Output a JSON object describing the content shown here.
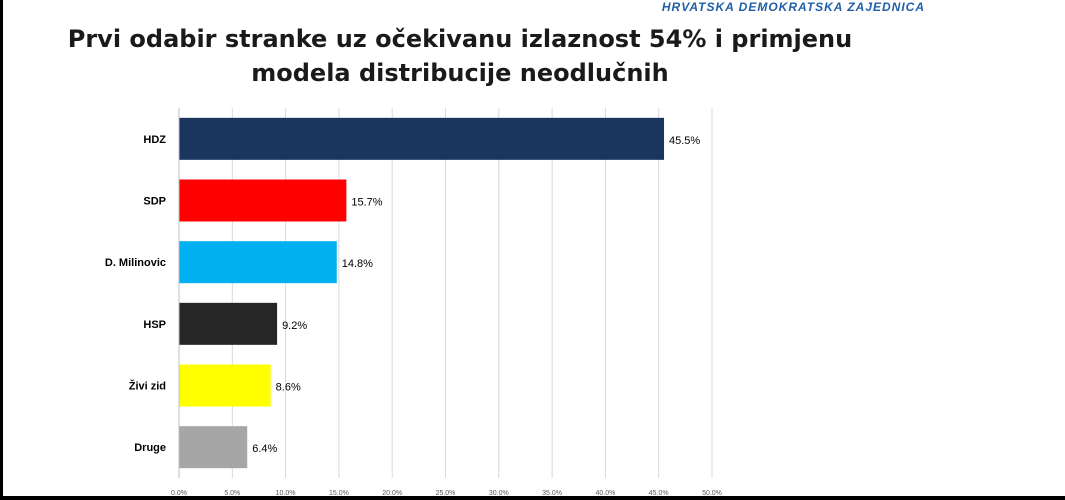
{
  "header": {
    "org": "HRVATSKA DEMOKRATSKA ZAJEDNICA"
  },
  "chart_data": {
    "type": "bar",
    "orientation": "horizontal",
    "title_lines": [
      "Prvi odabir stranke uz očekivanu izlaznost 54% i primjenu",
      "modela distribucije neodlučnih"
    ],
    "xlabel": "",
    "ylabel": "",
    "xlim": [
      0,
      50
    ],
    "ticks": [
      0,
      5,
      10,
      15,
      20,
      25,
      30,
      35,
      40,
      45,
      50
    ],
    "tick_labels": [
      "0.0%",
      "5.0%",
      "10.0%",
      "15.0%",
      "20.0%",
      "25.0%",
      "30.0%",
      "35.0%",
      "40.0%",
      "45.0%",
      "50.0%"
    ],
    "grid": true,
    "categories": [
      "HDZ",
      "SDP",
      "D. Milinovic",
      "HSP",
      "Živi zid",
      "Druge"
    ],
    "values": [
      45.5,
      15.7,
      14.8,
      9.2,
      8.6,
      6.4
    ],
    "value_labels": [
      "45.5%",
      "15.7%",
      "14.8%",
      "9.2%",
      "8.6%",
      "6.4%"
    ],
    "colors": [
      "#1a355e",
      "#ff0000",
      "#00b0f0",
      "#262626",
      "#ffff00",
      "#a6a6a6"
    ]
  }
}
